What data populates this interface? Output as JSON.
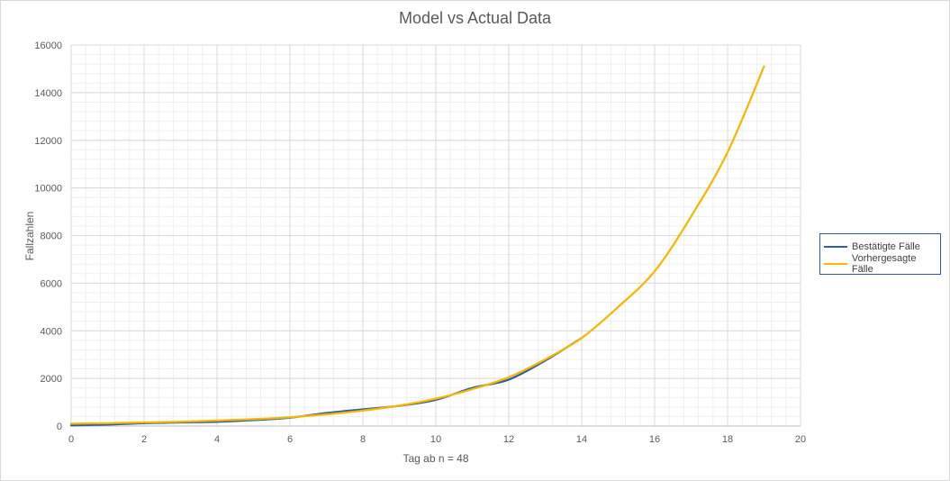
{
  "chart_data": {
    "type": "line",
    "title": "Model vs Actual Data",
    "xlabel": "Tag ab n  = 48",
    "ylabel": "Fallzahlen",
    "xlim": [
      0,
      20
    ],
    "ylim": [
      0,
      16000
    ],
    "xticks": [
      "0",
      "2",
      "4",
      "6",
      "8",
      "10",
      "12",
      "14",
      "16",
      "18",
      "20"
    ],
    "yticks": [
      "0",
      "2000",
      "4000",
      "6000",
      "8000",
      "10000",
      "12000",
      "14000",
      "16000"
    ],
    "grid": true,
    "minor_grid": true,
    "legend_position": "right",
    "series": [
      {
        "name": "Bestätigte Fälle",
        "color": "#2e5aa8",
        "x": [
          0,
          1,
          2,
          3,
          4,
          5,
          6,
          7,
          8,
          9,
          10,
          11,
          12,
          13,
          14
        ],
        "y": [
          30,
          60,
          120,
          150,
          180,
          250,
          350,
          550,
          700,
          850,
          1100,
          1600,
          1950,
          2750,
          3700
        ]
      },
      {
        "name": "Vorhergesagte Fälle",
        "color": "#f5b800",
        "x": [
          0,
          1,
          2,
          3,
          4,
          5,
          6,
          7,
          8,
          9,
          10,
          11,
          12,
          13,
          14,
          15,
          16,
          17,
          18,
          19
        ],
        "y": [
          100,
          120,
          150,
          180,
          230,
          290,
          370,
          490,
          650,
          860,
          1150,
          1550,
          2050,
          2800,
          3700,
          5000,
          6500,
          8800,
          11500,
          15100
        ]
      }
    ]
  }
}
